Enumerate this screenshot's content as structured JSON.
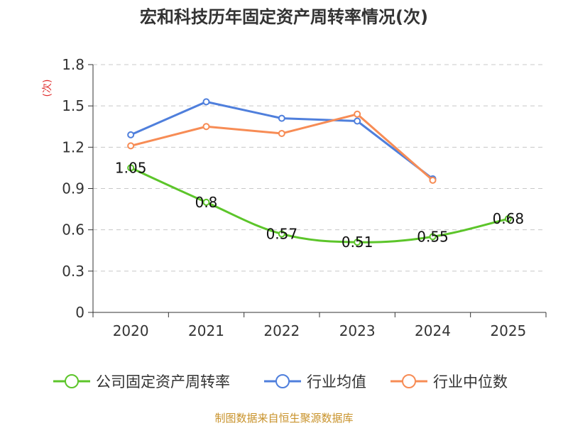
{
  "chart_data": {
    "type": "line",
    "title": "宏和科技历年固定资产周转率情况(次)",
    "ylabel": "(次)",
    "xlabel": "",
    "categories": [
      "2020",
      "2021",
      "2022",
      "2023",
      "2024",
      "2025"
    ],
    "y_ticks": [
      "0",
      "0.3",
      "0.6",
      "0.9",
      "1.2",
      "1.5",
      "1.8"
    ],
    "ylim": [
      0,
      1.8
    ],
    "grid": true,
    "legend_position": "bottom",
    "series": [
      {
        "name": "公司固定资产周转率",
        "color": "#5cc52a",
        "values": [
          1.05,
          0.8,
          0.57,
          0.51,
          0.55,
          0.68
        ],
        "labels": [
          "1.05",
          "0.8",
          "0.57",
          "0.51",
          "0.55",
          "0.68"
        ]
      },
      {
        "name": "行业均值",
        "color": "#4f7fdc",
        "values": [
          1.29,
          1.53,
          1.41,
          1.39,
          0.97,
          null
        ]
      },
      {
        "name": "行业中位数",
        "color": "#f78c55",
        "values": [
          1.21,
          1.35,
          1.3,
          1.44,
          0.96,
          null
        ]
      }
    ],
    "source": "制图数据来自恒生聚源数据库"
  }
}
